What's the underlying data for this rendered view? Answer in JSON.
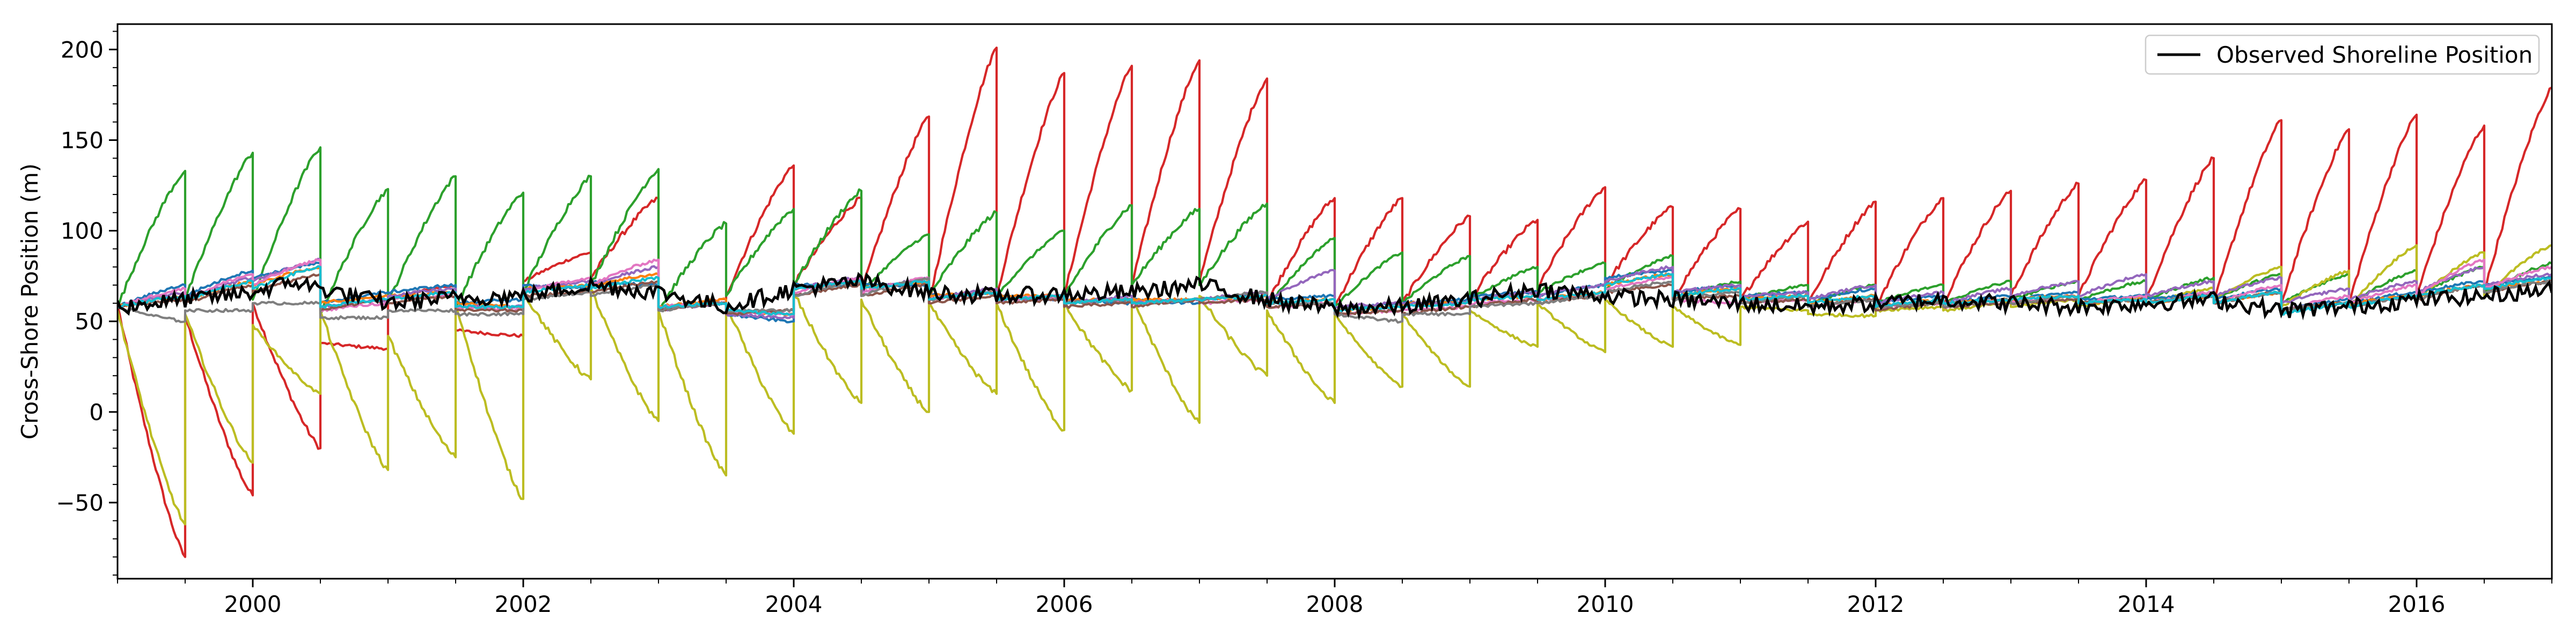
{
  "chart_data": {
    "type": "line",
    "title": "",
    "xlabel": "",
    "ylabel": "Cross-Shore Position (m)",
    "xlim": [
      1999.0,
      2017.0
    ],
    "ylim": [
      -92,
      214
    ],
    "xticks": [
      2000,
      2002,
      2004,
      2006,
      2008,
      2010,
      2012,
      2014,
      2016
    ],
    "xtick_labels": [
      "2000",
      "2002",
      "2004",
      "2006",
      "2008",
      "2010",
      "2012",
      "2014",
      "2016"
    ],
    "yticks": [
      -50,
      0,
      50,
      100,
      150,
      200
    ],
    "ytick_labels": [
      "−50",
      "0",
      "50",
      "100",
      "150",
      "200"
    ],
    "grid": false,
    "legend": {
      "placement": "top-right",
      "entries": [
        "Observed Shoreline Position"
      ]
    },
    "segment_starts": [
      1999.0,
      1999.5,
      2000.0,
      2000.5,
      2001.0,
      2001.5,
      2002.0,
      2002.5,
      2003.0,
      2003.5,
      2004.0,
      2004.5,
      2005.0,
      2005.5,
      2006.0,
      2006.5,
      2007.0,
      2007.5,
      2008.0,
      2008.5,
      2009.0,
      2009.5,
      2010.0,
      2010.5,
      2011.0,
      2011.5,
      2012.0,
      2012.5,
      2013.0,
      2013.5,
      2014.0,
      2014.5,
      2015.0,
      2015.5,
      2016.0,
      2016.5,
      2017.0
    ],
    "observed": {
      "name": "Observed Shoreline Position",
      "color": "#000000",
      "x": [
        1999.0,
        1999.5,
        2000.0,
        2000.3,
        2000.5,
        2001.0,
        2001.5,
        2002.0,
        2002.5,
        2003.0,
        2003.5,
        2004.0,
        2004.5,
        2005.0,
        2005.5,
        2006.0,
        2006.5,
        2007.0,
        2007.5,
        2008.0,
        2008.5,
        2009.0,
        2009.5,
        2010.0,
        2010.5,
        2011.0,
        2011.5,
        2012.0,
        2012.5,
        2013.0,
        2013.5,
        2014.0,
        2014.5,
        2015.0,
        2015.5,
        2016.0,
        2016.5,
        2017.0
      ],
      "y": [
        58,
        62,
        66,
        72,
        68,
        60,
        63,
        64,
        70,
        66,
        58,
        68,
        72,
        66,
        64,
        65,
        66,
        70,
        62,
        57,
        58,
        62,
        68,
        64,
        62,
        60,
        58,
        60,
        62,
        60,
        58,
        60,
        62,
        56,
        58,
        62,
        64,
        68
      ]
    },
    "series": [
      {
        "color": "#d62728",
        "starts": [
          59,
          53,
          60,
          38,
          62,
          45,
          72,
          74,
          56,
          64,
          70,
          66,
          60,
          64,
          64,
          70,
          72,
          60,
          58,
          60,
          62,
          68,
          70,
          62,
          62,
          60,
          58,
          60,
          64,
          64,
          62,
          60,
          60,
          60,
          64,
          66
        ],
        "ends": [
          -80,
          -46,
          -20,
          35,
          70,
          42,
          88,
          118,
          62,
          136,
          118,
          163,
          201,
          187,
          191,
          194,
          184,
          118,
          118,
          108,
          106,
          124,
          113,
          112,
          105,
          116,
          118,
          122,
          126,
          128,
          140,
          161,
          156,
          164,
          158,
          179
        ]
      },
      {
        "color": "#2ca02c",
        "starts": [
          58,
          62,
          62,
          54,
          60,
          58,
          66,
          70,
          56,
          64,
          70,
          66,
          64,
          64,
          64,
          70,
          70,
          58,
          58,
          60,
          62,
          66,
          68,
          62,
          62,
          60,
          60,
          60,
          62,
          62,
          62,
          62,
          60,
          60,
          64,
          66
        ],
        "ends": [
          133,
          143,
          146,
          123,
          130,
          121,
          130,
          134,
          104,
          112,
          122,
          98,
          110,
          100,
          114,
          112,
          115,
          96,
          88,
          86,
          80,
          82,
          86,
          72,
          70,
          70,
          70,
          72,
          72,
          72,
          74,
          76,
          76,
          78,
          80,
          82
        ]
      },
      {
        "color": "#bcbd22",
        "starts": [
          56,
          54,
          48,
          56,
          42,
          60,
          66,
          68,
          56,
          60,
          66,
          62,
          60,
          60,
          60,
          64,
          64,
          56,
          54,
          54,
          56,
          60,
          62,
          58,
          58,
          54,
          56,
          56,
          58,
          58,
          60,
          62,
          58,
          58,
          62,
          64
        ],
        "ends": [
          -62,
          -28,
          10,
          -32,
          -25,
          -48,
          18,
          -5,
          -35,
          -12,
          5,
          0,
          10,
          -10,
          12,
          -6,
          20,
          5,
          14,
          14,
          36,
          33,
          36,
          37,
          56,
          53,
          58,
          60,
          62,
          64,
          68,
          80,
          78,
          92,
          88,
          92
        ]
      },
      {
        "color": "#1f77b4",
        "starts": [
          58,
          64,
          74,
          60,
          66,
          60,
          70,
          72,
          58,
          54,
          70,
          70,
          64,
          64,
          62,
          62,
          62,
          62,
          56,
          60,
          64,
          64,
          74,
          66,
          64,
          62,
          60,
          60,
          62,
          62,
          62,
          62,
          56,
          60,
          66,
          70
        ],
        "ends": [
          70,
          78,
          82,
          66,
          70,
          62,
          68,
          70,
          60,
          50,
          70,
          70,
          66,
          62,
          60,
          60,
          64,
          64,
          60,
          62,
          66,
          70,
          78,
          70,
          66,
          68,
          64,
          64,
          66,
          64,
          66,
          68,
          62,
          66,
          72,
          74
        ]
      },
      {
        "color": "#ff7f0e",
        "starts": [
          58,
          62,
          70,
          60,
          64,
          60,
          68,
          70,
          58,
          56,
          68,
          68,
          64,
          64,
          62,
          62,
          62,
          60,
          56,
          60,
          62,
          62,
          70,
          64,
          62,
          60,
          58,
          60,
          62,
          60,
          60,
          60,
          56,
          60,
          64,
          68
        ],
        "ends": [
          64,
          72,
          80,
          64,
          66,
          58,
          70,
          76,
          62,
          54,
          72,
          72,
          66,
          64,
          62,
          62,
          64,
          62,
          58,
          60,
          64,
          66,
          76,
          68,
          64,
          64,
          62,
          62,
          64,
          62,
          64,
          66,
          60,
          64,
          70,
          72
        ]
      },
      {
        "color": "#9467bd",
        "starts": [
          58,
          62,
          72,
          58,
          64,
          58,
          68,
          70,
          56,
          54,
          68,
          66,
          62,
          62,
          60,
          60,
          62,
          62,
          58,
          60,
          62,
          64,
          72,
          66,
          64,
          62,
          60,
          60,
          64,
          64,
          64,
          64,
          60,
          62,
          66,
          70
        ],
        "ends": [
          66,
          74,
          84,
          62,
          68,
          58,
          72,
          80,
          60,
          52,
          74,
          74,
          68,
          62,
          64,
          62,
          66,
          78,
          60,
          60,
          66,
          70,
          80,
          70,
          66,
          70,
          66,
          68,
          72,
          76,
          72,
          74,
          68,
          72,
          80,
          76
        ]
      },
      {
        "color": "#e377c2",
        "starts": [
          58,
          62,
          70,
          56,
          62,
          58,
          66,
          70,
          58,
          56,
          66,
          66,
          62,
          62,
          60,
          60,
          60,
          58,
          54,
          56,
          60,
          62,
          68,
          62,
          60,
          58,
          58,
          58,
          60,
          60,
          60,
          60,
          56,
          60,
          64,
          68
        ],
        "ends": [
          68,
          76,
          84,
          60,
          64,
          56,
          74,
          84,
          60,
          54,
          74,
          74,
          66,
          64,
          62,
          62,
          62,
          60,
          56,
          58,
          62,
          64,
          74,
          60,
          62,
          62,
          60,
          62,
          64,
          64,
          66,
          70,
          64,
          70,
          84,
          80
        ]
      },
      {
        "color": "#8c564b",
        "starts": [
          58,
          60,
          66,
          56,
          60,
          56,
          64,
          66,
          56,
          54,
          64,
          64,
          60,
          60,
          58,
          58,
          60,
          58,
          54,
          54,
          58,
          60,
          66,
          62,
          60,
          58,
          56,
          58,
          60,
          60,
          60,
          60,
          56,
          58,
          62,
          66
        ],
        "ends": [
          62,
          70,
          76,
          62,
          64,
          56,
          66,
          72,
          60,
          56,
          70,
          70,
          64,
          62,
          60,
          62,
          62,
          60,
          56,
          58,
          62,
          64,
          70,
          64,
          62,
          62,
          60,
          60,
          62,
          62,
          64,
          66,
          60,
          64,
          70,
          72
        ]
      },
      {
        "color": "#7f7f7f",
        "starts": [
          58,
          56,
          60,
          52,
          56,
          54,
          62,
          64,
          56,
          56,
          64,
          64,
          62,
          62,
          60,
          60,
          62,
          60,
          54,
          54,
          58,
          60,
          66,
          62,
          60,
          58,
          58,
          58,
          60,
          60,
          60,
          60,
          56,
          58,
          62,
          66
        ],
        "ends": [
          50,
          56,
          60,
          52,
          56,
          54,
          66,
          70,
          60,
          56,
          72,
          74,
          66,
          64,
          62,
          62,
          66,
          60,
          50,
          54,
          60,
          64,
          72,
          66,
          64,
          62,
          60,
          62,
          64,
          62,
          64,
          66,
          60,
          64,
          70,
          72
        ]
      },
      {
        "color": "#17becf",
        "starts": [
          58,
          62,
          68,
          58,
          62,
          58,
          66,
          68,
          58,
          56,
          68,
          68,
          62,
          62,
          60,
          60,
          62,
          60,
          56,
          58,
          62,
          62,
          70,
          64,
          62,
          60,
          58,
          60,
          62,
          60,
          60,
          60,
          54,
          58,
          64,
          68
        ],
        "ends": [
          64,
          72,
          80,
          62,
          66,
          58,
          70,
          74,
          60,
          54,
          72,
          72,
          66,
          64,
          62,
          62,
          64,
          62,
          58,
          60,
          64,
          66,
          76,
          68,
          64,
          64,
          62,
          62,
          64,
          62,
          64,
          66,
          60,
          64,
          70,
          74
        ]
      }
    ]
  }
}
